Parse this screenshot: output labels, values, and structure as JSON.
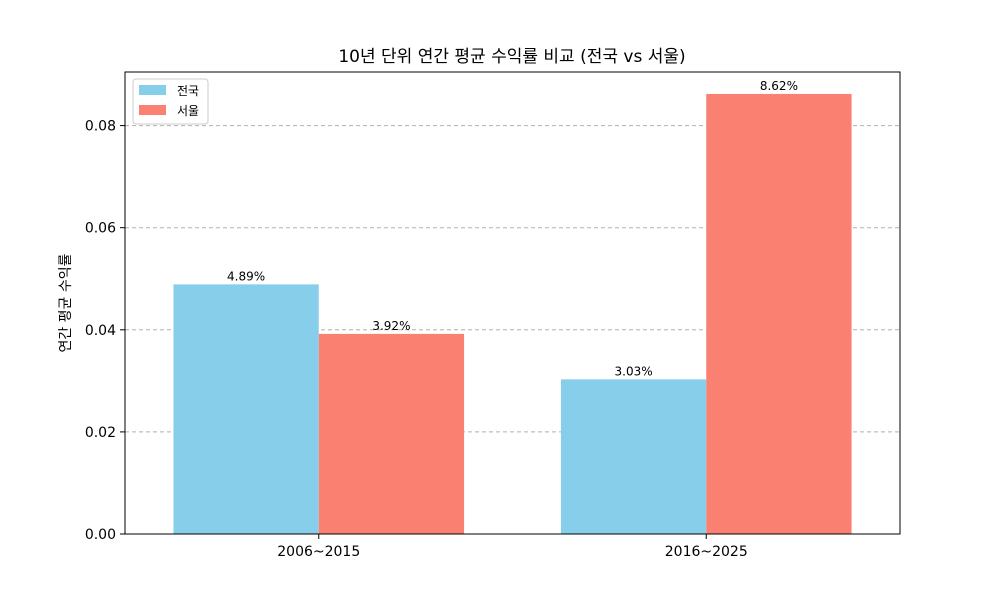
{
  "chart_data": {
    "type": "bar",
    "title": "10년 단위 연간 평균 수익률 비교 (전국 vs 서울)",
    "xlabel": "",
    "ylabel": "연간 평균 수익률",
    "categories": [
      "2006~2015",
      "2016~2025"
    ],
    "series": [
      {
        "name": "전국",
        "values": [
          0.0489,
          0.0303
        ],
        "labels": [
          "4.89%",
          "3.03%"
        ],
        "color": "#87ceeb"
      },
      {
        "name": "서울",
        "values": [
          0.0392,
          0.0862
        ],
        "labels": [
          "3.92%",
          "8.62%"
        ],
        "color": "#fa8072"
      }
    ],
    "ylim": [
      0,
      0.0905
    ],
    "yticks": [
      "0.00",
      "0.02",
      "0.04",
      "0.06",
      "0.08"
    ],
    "grid": "y-dashed",
    "legend_position": "top-left"
  }
}
